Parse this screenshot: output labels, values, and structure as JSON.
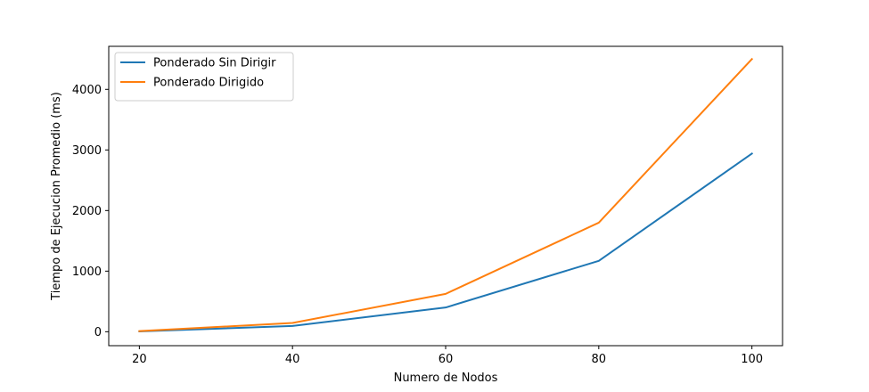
{
  "chart_data": {
    "type": "line",
    "title": "",
    "xlabel": "Numero de Nodos",
    "ylabel": "Tiempo de Ejecucion Promedio (ms)",
    "x": [
      20,
      40,
      60,
      80,
      100
    ],
    "xlim": [
      16,
      104
    ],
    "ylim": [
      -230,
      4710
    ],
    "xticks": [
      20,
      40,
      60,
      80,
      100
    ],
    "yticks": [
      0,
      1000,
      2000,
      3000,
      4000
    ],
    "grid": false,
    "legend_position": "upper-left",
    "series": [
      {
        "name": "Ponderado Sin Dirigir",
        "color": "#1f77b4",
        "values": [
          5,
          95,
          400,
          1170,
          2940
        ]
      },
      {
        "name": "Ponderado Dirigido",
        "color": "#ff7f0e",
        "values": [
          10,
          145,
          625,
          1800,
          4500
        ]
      }
    ]
  }
}
